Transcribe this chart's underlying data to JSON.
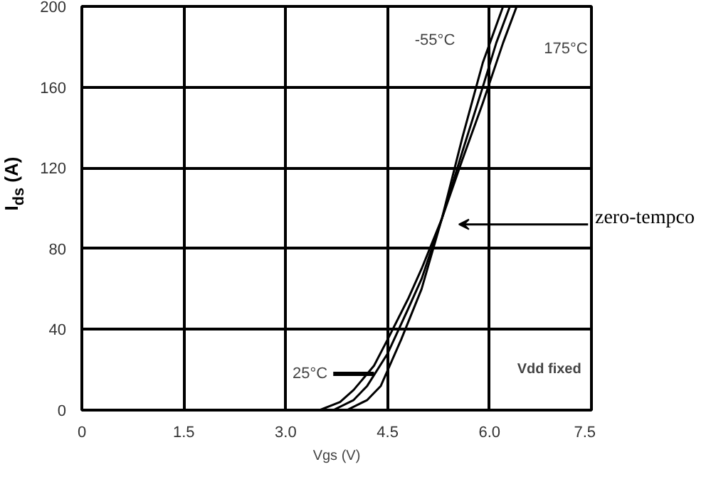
{
  "chart_data": {
    "type": "line",
    "xlabel": "Vgs (V)",
    "ylabel": "I$_{ds}$ (A)",
    "xlim": [
      0,
      7.5
    ],
    "ylim": [
      0,
      200
    ],
    "xticks": [
      0,
      1.5,
      {
        "value": 3,
        "label": "3.0"
      },
      4.5,
      {
        "value": 6,
        "label": "6.0"
      },
      7.5
    ],
    "yticks": [
      0,
      40,
      80,
      120,
      160,
      200
    ],
    "grid": true,
    "line_style": "solid",
    "series": [
      {
        "color": "#000000",
        "x": [
          3.5,
          3.8,
          4.0,
          4.3,
          4.5,
          4.8,
          5.0,
          5.3,
          5.6,
          5.9,
          6.2,
          6.4
        ],
        "values": [
          0,
          4,
          10,
          22,
          35,
          55,
          70,
          95,
          124,
          152,
          182,
          200
        ]
      },
      {
        "color": "#000000",
        "x": [
          3.7,
          4.0,
          4.2,
          4.5,
          4.8,
          5.0,
          5.3,
          5.6,
          5.9,
          6.1,
          6.3
        ],
        "values": [
          0,
          5,
          12,
          28,
          50,
          65,
          95,
          128,
          160,
          182,
          200
        ]
      },
      {
        "color": "#000000",
        "x": [
          3.9,
          4.2,
          4.4,
          4.7,
          5.0,
          5.3,
          5.6,
          5.9,
          6.2
        ],
        "values": [
          0,
          5,
          12,
          35,
          60,
          95,
          135,
          172,
          200
        ]
      }
    ],
    "annotations": [
      "-55°C",
      "175°C",
      "25°C",
      "zero-tempco",
      "Vdd fixed"
    ]
  }
}
